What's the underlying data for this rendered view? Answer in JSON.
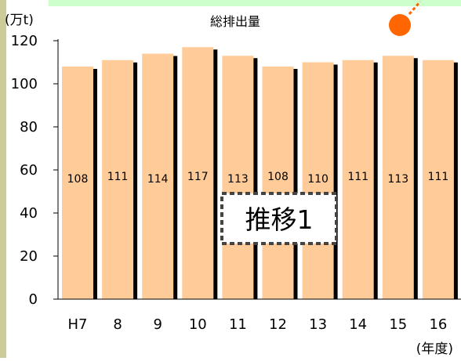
{
  "chart_data": {
    "type": "bar",
    "title": "総排出量",
    "y_unit_label": "(万t)",
    "x_unit_label": "(年度)",
    "categories": [
      "H7",
      "8",
      "9",
      "10",
      "11",
      "12",
      "13",
      "14",
      "15",
      "16"
    ],
    "values": [
      108,
      111,
      114,
      117,
      113,
      108,
      110,
      111,
      113,
      111
    ],
    "data_labels": [
      "108",
      "111",
      "114",
      "117",
      "113",
      "108",
      "110",
      "111",
      "113",
      "111"
    ],
    "ylim": [
      0,
      120
    ],
    "yticks": [
      0,
      20,
      40,
      60,
      80,
      100,
      120
    ],
    "grid": false,
    "bar_color": "#FFCC99",
    "shadow_color": "#000000"
  },
  "overlay": {
    "label": "推移1"
  },
  "colors": {
    "left_strip": "#CCCC99",
    "top_strip": "#CCFFCC",
    "accent_dot": "#FF6600"
  }
}
